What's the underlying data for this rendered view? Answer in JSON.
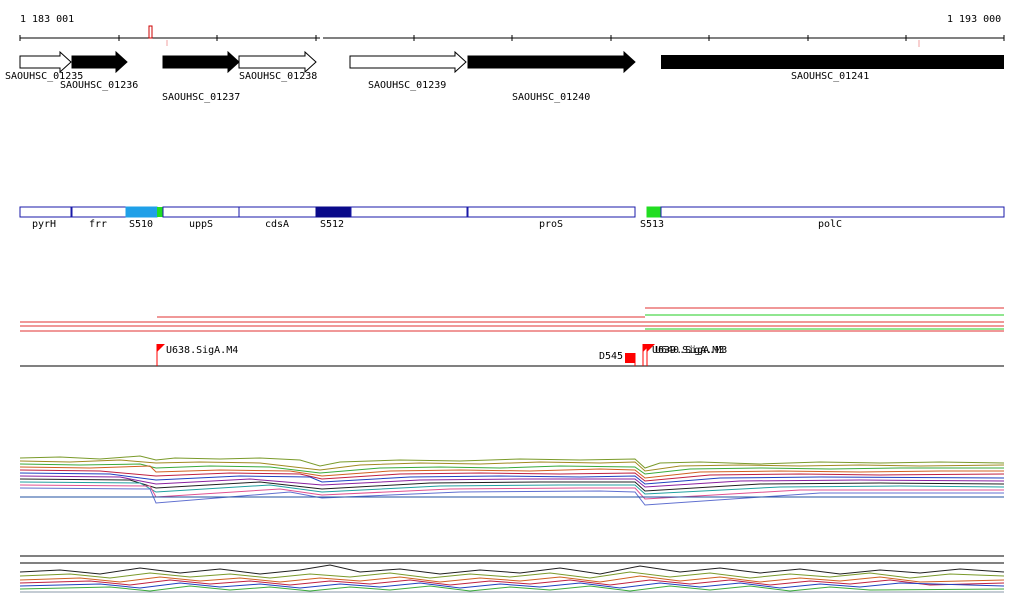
{
  "ruler": {
    "start_label": "1 183 001",
    "end_label": "1 193 000"
  },
  "genes": [
    {
      "id": "SAOUHSC_01235",
      "strand": "open"
    },
    {
      "id": "SAOUHSC_01236",
      "strand": "filled"
    },
    {
      "id": "SAOUHSC_01237",
      "strand": "filled"
    },
    {
      "id": "SAOUHSC_01238",
      "strand": "open"
    },
    {
      "id": "SAOUHSC_01239",
      "strand": "open"
    },
    {
      "id": "SAOUHSC_01240",
      "strand": "filled"
    },
    {
      "id": "SAOUHSC_01241",
      "strand": "filled"
    }
  ],
  "segments": [
    {
      "label": "pyrH"
    },
    {
      "label": "frr"
    },
    {
      "label": "S510",
      "fill": "#1fa0e8"
    },
    {
      "label": "uppS"
    },
    {
      "label": "cdsA"
    },
    {
      "label": "S512",
      "fill": "#0a0a8a"
    },
    {
      "label": "proS"
    },
    {
      "label": "S513",
      "fill": "#22dd22"
    },
    {
      "label": "polC"
    }
  ],
  "segment_outline_color": "#1a1aa8",
  "tss_markers": [
    {
      "label": "U638.SigA.M4"
    },
    {
      "label": "D545"
    },
    {
      "label": "U639.SigA.M3"
    },
    {
      "label": "U640.SigA.M3"
    }
  ],
  "colors": {
    "tss_flag": "#ff0000",
    "track_red": "#e03030",
    "track_green": "#22cc22"
  }
}
